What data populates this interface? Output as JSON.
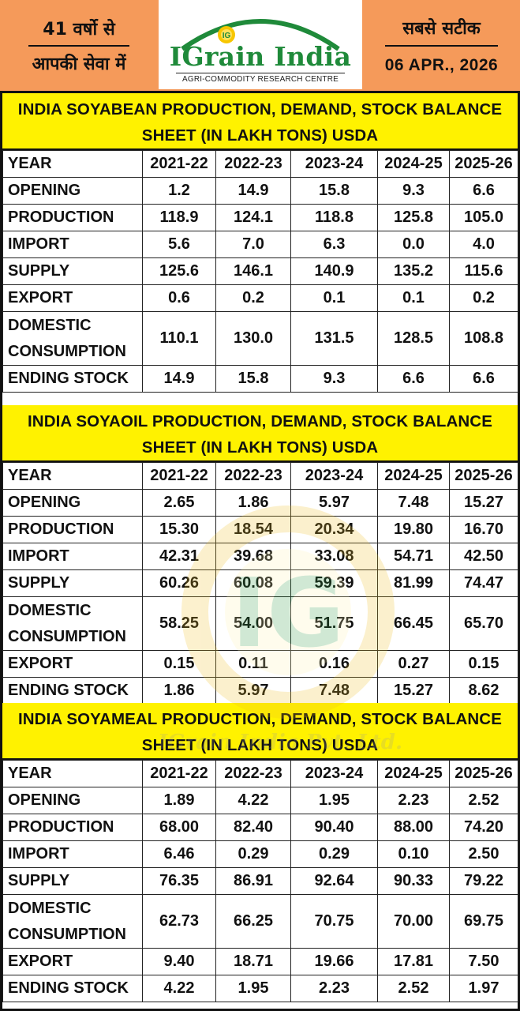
{
  "header": {
    "left_line1": "41 वर्षो से",
    "left_line2": "आपकी सेवा में",
    "logo_name": "IGrain India",
    "logo_mark": "IG",
    "logo_tagline": "AGRI-COMMODITY RESEARCH CENTRE",
    "right_line1": "सबसे सटीक",
    "date": "06 APR., 2026"
  },
  "colors": {
    "header_bg": "#f59a5a",
    "title_bg": "#fff200",
    "logo_green": "#1f8a3a"
  },
  "tables": [
    {
      "title_line1": "INDIA SOYABEAN PRODUCTION, DEMAND, STOCK BALANCE",
      "title_line2": "SHEET (IN LAKH TONS) USDA",
      "year_label": "YEAR",
      "years": [
        "2021-22",
        "2022-23",
        "2023-24",
        "2024-25",
        "2025-26"
      ],
      "rows": [
        {
          "label": "OPENING",
          "values": [
            "1.2",
            "14.9",
            "15.8",
            "9.3",
            "6.6"
          ]
        },
        {
          "label": "PRODUCTION",
          "values": [
            "118.9",
            "124.1",
            "118.8",
            "125.8",
            "105.0"
          ]
        },
        {
          "label": "IMPORT",
          "values": [
            "5.6",
            "7.0",
            "6.3",
            "0.0",
            "4.0"
          ]
        },
        {
          "label": "SUPPLY",
          "values": [
            "125.6",
            "146.1",
            "140.9",
            "135.2",
            "115.6"
          ]
        },
        {
          "label": "EXPORT",
          "values": [
            "0.6",
            "0.2",
            "0.1",
            "0.1",
            "0.2"
          ]
        },
        {
          "label": "DOMESTIC CONSUMPTION",
          "values": [
            "110.1",
            "130.0",
            "131.5",
            "128.5",
            "108.8"
          ]
        },
        {
          "label": "ENDING STOCK",
          "values": [
            "14.9",
            "15.8",
            "9.3",
            "6.6",
            "6.6"
          ]
        }
      ]
    },
    {
      "title_line1": "INDIA SOYAOIL PRODUCTION, DEMAND, STOCK BALANCE",
      "title_line2": "SHEET (IN LAKH TONS) USDA",
      "year_label": "YEAR",
      "years": [
        "2021-22",
        "2022-23",
        "2023-24",
        "2024-25",
        "2025-26"
      ],
      "rows": [
        {
          "label": "OPENING",
          "values": [
            "2.65",
            "1.86",
            "5.97",
            "7.48",
            "15.27"
          ]
        },
        {
          "label": "PRODUCTION",
          "values": [
            "15.30",
            "18.54",
            "20.34",
            "19.80",
            "16.70"
          ]
        },
        {
          "label": "IMPORT",
          "values": [
            "42.31",
            "39.68",
            "33.08",
            "54.71",
            "42.50"
          ]
        },
        {
          "label": "SUPPLY",
          "values": [
            "60.26",
            "60.08",
            "59.39",
            "81.99",
            "74.47"
          ]
        },
        {
          "label": "DOMESTIC CONSUMPTION",
          "values": [
            "58.25",
            "54.00",
            "51.75",
            "66.45",
            "65.70"
          ]
        },
        {
          "label": "EXPORT",
          "values": [
            "0.15",
            "0.11",
            "0.16",
            "0.27",
            "0.15"
          ]
        },
        {
          "label": "ENDING STOCK",
          "values": [
            "1.86",
            "5.97",
            "7.48",
            "15.27",
            "8.62"
          ]
        }
      ]
    },
    {
      "title_line1": "INDIA SOYAMEAL PRODUCTION, DEMAND, STOCK BALANCE",
      "title_line2": "SHEET (IN LAKH TONS) USDA",
      "year_label": "YEAR",
      "years": [
        "2021-22",
        "2022-23",
        "2023-24",
        "2024-25",
        "2025-26"
      ],
      "rows": [
        {
          "label": "OPENING",
          "values": [
            "1.89",
            "4.22",
            "1.95",
            "2.23",
            "2.52"
          ]
        },
        {
          "label": "PRODUCTION",
          "values": [
            "68.00",
            "82.40",
            "90.40",
            "88.00",
            "74.20"
          ]
        },
        {
          "label": "IMPORT",
          "values": [
            "6.46",
            "0.29",
            "0.29",
            "0.10",
            "2.50"
          ]
        },
        {
          "label": "SUPPLY",
          "values": [
            "76.35",
            "86.91",
            "92.64",
            "90.33",
            "79.22"
          ]
        },
        {
          "label": "DOMESTIC CONSUMPTION",
          "values": [
            "62.73",
            "66.25",
            "70.75",
            "70.00",
            "69.75"
          ]
        },
        {
          "label": "EXPORT",
          "values": [
            "9.40",
            "18.71",
            "19.66",
            "17.81",
            "7.50"
          ]
        },
        {
          "label": "ENDING STOCK",
          "values": [
            "4.22",
            "1.95",
            "2.23",
            "2.52",
            "1.97"
          ]
        }
      ]
    }
  ],
  "watermark": {
    "mark": "IG",
    "text": "IGrain India Pvt. Ltd."
  }
}
